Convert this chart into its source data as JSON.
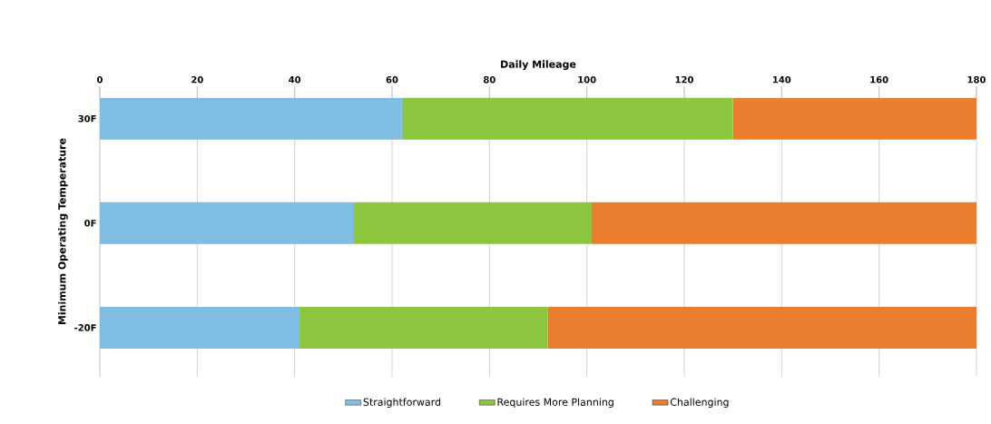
{
  "chart_data": {
    "type": "bar",
    "orientation": "horizontal",
    "stacked": true,
    "xlabel": "Daily Mileage",
    "ylabel": "Minimum Operating Temperature",
    "categories": [
      "30F",
      "0F",
      "-20F"
    ],
    "series": [
      {
        "name": "Straightforward",
        "color": "#7fbde2",
        "values": [
          62,
          52,
          41
        ]
      },
      {
        "name": "Requires More Planning",
        "color": "#8cc63f",
        "values": [
          68,
          49,
          51
        ]
      },
      {
        "name": "Challenging",
        "color": "#eb7d2e",
        "values": [
          50,
          79,
          88
        ]
      }
    ],
    "xlim": [
      0,
      180
    ],
    "xticks": [
      0,
      20,
      40,
      60,
      80,
      100,
      120,
      140,
      160,
      180
    ],
    "grid": "x",
    "legend": "bottom"
  }
}
